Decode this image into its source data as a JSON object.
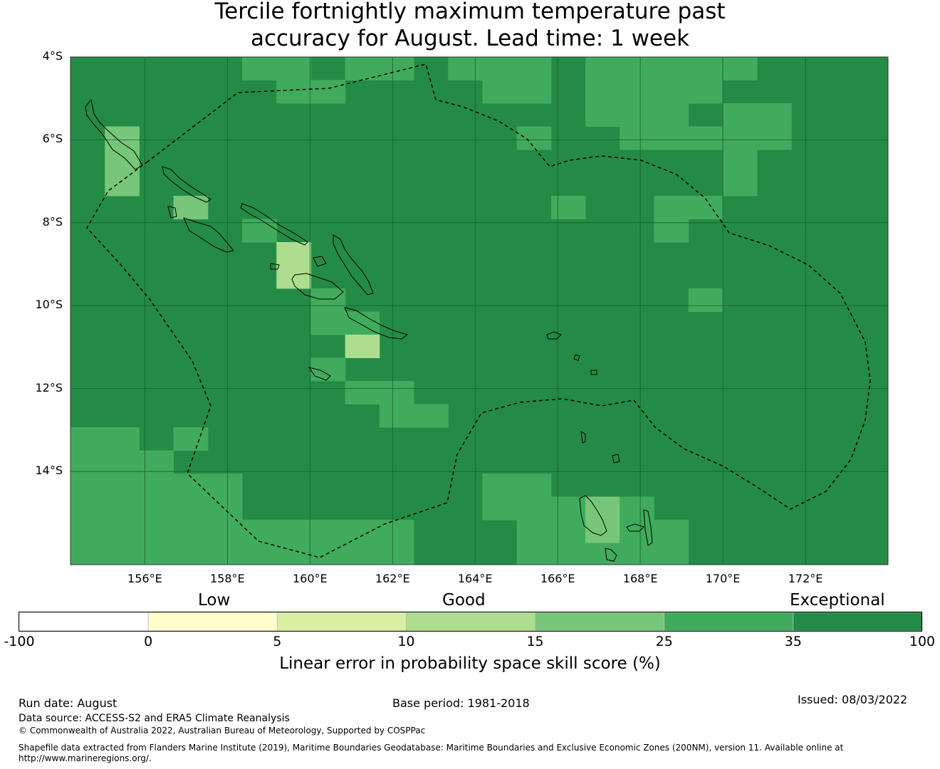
{
  "title": {
    "line1": "Tercile fortnightly maximum temperature past",
    "line2": "accuracy for August. Lead time: 1 week"
  },
  "map": {
    "lon_range": [
      154.2,
      174.0
    ],
    "lat_range": [
      -16.25,
      -4.0
    ],
    "lat_ticks": [
      {
        "value": -4,
        "label": "4°S"
      },
      {
        "value": -6,
        "label": "6°S"
      },
      {
        "value": -8,
        "label": "8°S"
      },
      {
        "value": -10,
        "label": "10°S"
      },
      {
        "value": -12,
        "label": "12°S"
      },
      {
        "value": -14,
        "label": "14°S"
      }
    ],
    "lon_ticks": [
      {
        "value": 156,
        "label": "156°E"
      },
      {
        "value": 158,
        "label": "158°E"
      },
      {
        "value": 160,
        "label": "160°E"
      },
      {
        "value": 162,
        "label": "162°E"
      },
      {
        "value": 164,
        "label": "164°E"
      },
      {
        "value": 166,
        "label": "166°E"
      },
      {
        "value": 168,
        "label": "168°E"
      },
      {
        "value": 170,
        "label": "170°E"
      },
      {
        "value": 172,
        "label": "172°E"
      }
    ],
    "grid_lines": true,
    "cell_colors": {
      "exceptional": "#238b45",
      "class_25_35": "#41ab5d",
      "class_15_25": "#78c679",
      "class_10_15": "#addd8e"
    }
  },
  "colorbar": {
    "categories": {
      "low": "Low",
      "good": "Good",
      "exceptional": "Exceptional"
    },
    "ticks": [
      "-100",
      "0",
      "5",
      "10",
      "15",
      "25",
      "35",
      "100"
    ],
    "colors": [
      "#ffffff",
      "#ffffcc",
      "#d9f0a3",
      "#addd8e",
      "#78c679",
      "#41ab5d",
      "#238b45"
    ],
    "label": "Linear error in probability space skill score (%)"
  },
  "footer": {
    "run_date": "Run date: August",
    "base_period": "Base period: 1981-2018",
    "issued": "Issued: 08/03/2022",
    "data_source": "Data source: ACCESS-S2 and ERA5 Climate Reanalysis",
    "copyright": "© Commonwealth of Australia 2022, Australian Bureau of Meteorology, Supported by COSPPac",
    "shapefile_line1": "Shapefile data extracted from Flanders Marine Institute (2019), Maritime Boundaries Geodatabase: Maritime Boundaries and Exclusive Economic Zones (200NM), version 11. Available online at",
    "shapefile_line2": "http://www.marineregions.org/."
  }
}
